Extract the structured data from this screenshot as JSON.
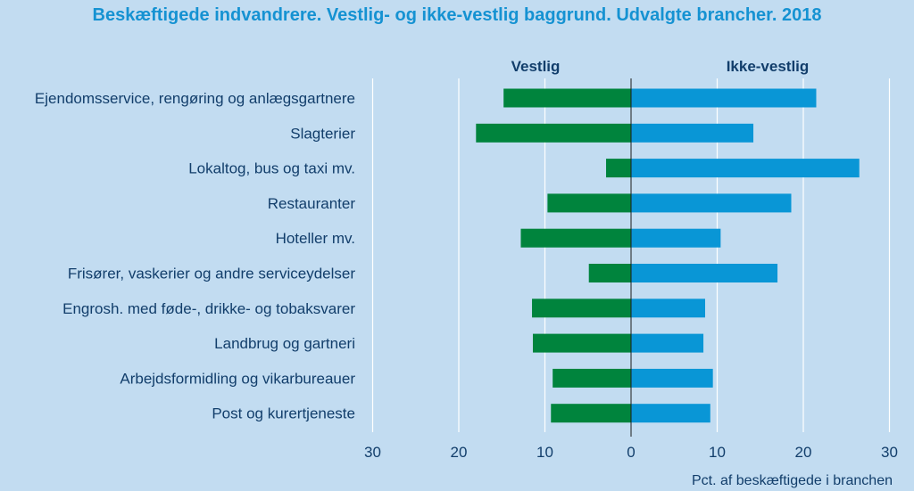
{
  "chart_data": {
    "type": "bar",
    "orientation": "horizontal-diverging",
    "title": "Beskæftigede indvandrere. Vestlig- og ikke-vestlig baggrund. Udvalgte brancher. 2018",
    "left_header": "Vestlig",
    "right_header": "Ikke-vestlig",
    "xlabel": "Pct. af beskæftigede i branchen",
    "xlim": [
      -30,
      30
    ],
    "ticks": [
      -30,
      -20,
      -10,
      0,
      10,
      20,
      30
    ],
    "tick_labels": [
      "30",
      "20",
      "10",
      "0",
      "10",
      "20",
      "30"
    ],
    "categories": [
      "Ejendomsservice, rengøring og anlægsgartnere",
      "Slagterier",
      "Lokaltog, bus og taxi mv.",
      "Restauranter",
      "Hoteller mv.",
      "Frisører, vaskerier og andre serviceydelser",
      "Engrosh. med føde-, drikke- og tobaksvarer",
      "Landbrug og gartneri",
      "Arbejdsformidling og vikarbureauer",
      "Post og kurertjeneste"
    ],
    "series": [
      {
        "name": "Vestlig",
        "color": "#00843d",
        "values": [
          14.8,
          18.0,
          2.9,
          9.7,
          12.8,
          4.9,
          11.5,
          11.4,
          9.1,
          9.3
        ]
      },
      {
        "name": "Ikke-vestlig",
        "color": "#0996d6",
        "values": [
          21.5,
          14.2,
          26.5,
          18.6,
          10.4,
          17.0,
          8.6,
          8.4,
          9.5,
          9.2
        ]
      }
    ],
    "grid": "vertical",
    "colors": {
      "background": "#c2dcf1",
      "title": "#1592d2",
      "text": "#123e6b",
      "grid": "#ffffff"
    }
  }
}
